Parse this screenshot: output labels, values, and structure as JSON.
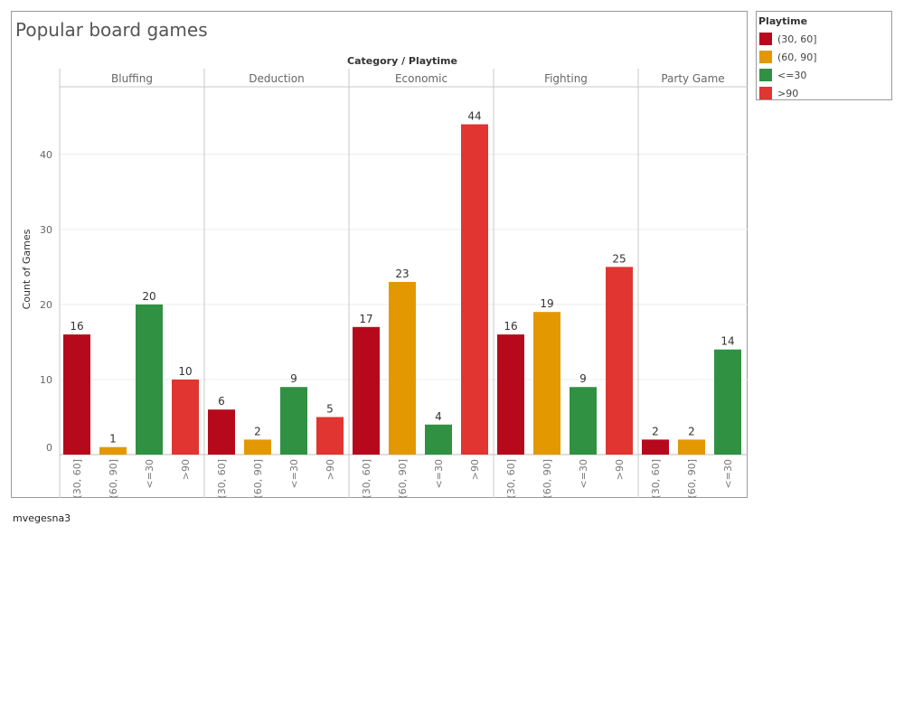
{
  "title": "Popular board games",
  "caption": "mvegesna3",
  "legend": {
    "title": "Playtime",
    "items": [
      {
        "label": "(30, 60]",
        "color": "#b60a1c"
      },
      {
        "label": "(60, 90]",
        "color": "#e39802"
      },
      {
        "label": "<=30",
        "color": "#309143"
      },
      {
        "label": ">90",
        "color": "#e03531"
      }
    ]
  },
  "chart_data": {
    "type": "bar",
    "title": "Popular board games",
    "header_label": "Category / Playtime",
    "ylabel": "Count of Games",
    "ylim": [
      0,
      49
    ],
    "yticks": [
      0,
      10,
      20,
      30,
      40
    ],
    "grid": true,
    "legend_position": "right",
    "categories": [
      {
        "name": "Bluffing",
        "bars": [
          {
            "playtime": "(30, 60]",
            "value": 16
          },
          {
            "playtime": "(60, 90]",
            "value": 1
          },
          {
            "playtime": "<=30",
            "value": 20
          },
          {
            "playtime": ">90",
            "value": 10
          }
        ]
      },
      {
        "name": "Deduction",
        "bars": [
          {
            "playtime": "(30, 60]",
            "value": 6
          },
          {
            "playtime": "(60, 90]",
            "value": 2
          },
          {
            "playtime": "<=30",
            "value": 9
          },
          {
            "playtime": ">90",
            "value": 5
          }
        ]
      },
      {
        "name": "Economic",
        "bars": [
          {
            "playtime": "(30, 60]",
            "value": 17
          },
          {
            "playtime": "(60, 90]",
            "value": 23
          },
          {
            "playtime": "<=30",
            "value": 4
          },
          {
            "playtime": ">90",
            "value": 44
          }
        ]
      },
      {
        "name": "Fighting",
        "bars": [
          {
            "playtime": "(30, 60]",
            "value": 16
          },
          {
            "playtime": "(60, 90]",
            "value": 19
          },
          {
            "playtime": "<=30",
            "value": 9
          },
          {
            "playtime": ">90",
            "value": 25
          }
        ]
      },
      {
        "name": "Party Game",
        "bars": [
          {
            "playtime": "(30, 60]",
            "value": 2
          },
          {
            "playtime": "(60, 90]",
            "value": 2
          },
          {
            "playtime": "<=30",
            "value": 14
          }
        ]
      }
    ]
  }
}
